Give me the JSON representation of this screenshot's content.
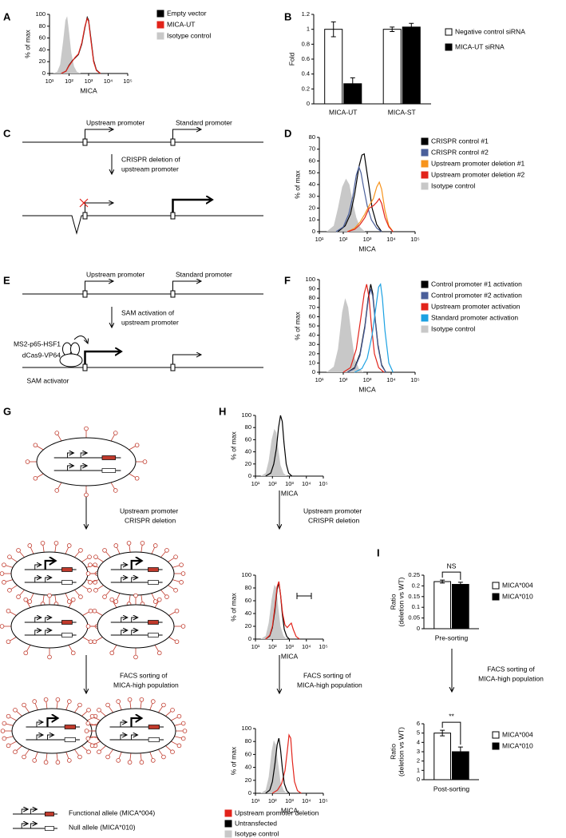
{
  "panel_labels": [
    "A",
    "B",
    "C",
    "D",
    "E",
    "F",
    "G",
    "H",
    "I"
  ],
  "diagrams": {
    "C": {
      "upstream": "Upstream promoter",
      "standard": "Standard promoter",
      "step": [
        "CRISPR deletion of",
        "upstream promoter"
      ]
    },
    "E": {
      "upstream": "Upstream promoter",
      "standard": "Standard promoter",
      "step": [
        "SAM activation of",
        "upstream promoter"
      ],
      "activator": [
        "MS2-p65-HSF1",
        "dCas9-VP64"
      ],
      "activator_name": "SAM activator"
    },
    "G": {
      "step1": [
        "Upstream promoter",
        "CRISPR deletion"
      ],
      "step2": [
        "FACS sorting of",
        "MICA-high population"
      ],
      "legend": [
        "Functional allele (MICA*004)",
        "Null allele (MICA*010)"
      ]
    },
    "H": {
      "step1": [
        "Upstream promoter",
        "CRISPR deletion"
      ],
      "step2": [
        "FACS sorting of",
        "MICA-high population"
      ]
    },
    "I": {
      "step": [
        "FACS sorting of",
        "MICA-high population"
      ]
    }
  },
  "chart_data": [
    {
      "type": "line",
      "xscale": "log",
      "ylabel": "% of max",
      "xlabel": "MICA",
      "legend": "right",
      "xlim": [
        10,
        100000
      ],
      "xticks": [
        {
          "value": 10,
          "label": "10¹"
        },
        {
          "value": 100,
          "label": "10²"
        },
        {
          "value": 1000,
          "label": "10³"
        },
        {
          "value": 10000,
          "label": "10⁴"
        },
        {
          "value": 100000,
          "label": "10⁵"
        }
      ],
      "ylim": [
        0,
        100
      ],
      "yticks": [
        0,
        20,
        40,
        60,
        80,
        100
      ],
      "series": [
        {
          "name": "Empty vector",
          "color": "#000000",
          "x": [
            40,
            70,
            100,
            150,
            200,
            300,
            450,
            650,
            850,
            1000,
            1300,
            1800,
            2500,
            4000
          ],
          "values": [
            0,
            4,
            14,
            22,
            26,
            32,
            50,
            78,
            95,
            90,
            60,
            22,
            6,
            0
          ]
        },
        {
          "name": "MICA-UT",
          "color": "#e2231a",
          "x": [
            40,
            70,
            100,
            150,
            200,
            300,
            450,
            650,
            850,
            1000,
            1300,
            1800,
            2500,
            4000
          ],
          "values": [
            0,
            4,
            13,
            21,
            27,
            33,
            52,
            80,
            93,
            88,
            57,
            20,
            5,
            0
          ]
        },
        {
          "name": "Isotype control",
          "color": "#c8c8c8",
          "fill": true,
          "x": [
            15,
            25,
            35,
            50,
            65,
            80,
            100,
            130,
            180,
            250,
            400
          ],
          "values": [
            0,
            3,
            15,
            55,
            90,
            97,
            70,
            35,
            12,
            3,
            0
          ]
        }
      ]
    },
    {
      "type": "bar",
      "ylabel": "Fold",
      "legend": "right",
      "categories": [
        "MICA-UT",
        "MICA-ST"
      ],
      "ylim": [
        0,
        1.2
      ],
      "yticks": [
        0,
        0.2,
        0.4,
        0.6,
        0.8,
        1,
        1.2
      ],
      "series": [
        {
          "name": "Negative control siRNA",
          "color": "#ffffff",
          "values": [
            1.0,
            1.0
          ],
          "errors": [
            0.1,
            0.03
          ]
        },
        {
          "name": "MICA-UT siRNA",
          "color": "#000000",
          "values": [
            0.27,
            1.03
          ],
          "errors": [
            0.08,
            0.05
          ]
        }
      ]
    },
    {
      "type": "line",
      "xscale": "log",
      "ylabel": "% of max",
      "xlabel": "MICA",
      "legend": "right",
      "xlim": [
        10,
        100000
      ],
      "xticks": [
        {
          "value": 10,
          "label": "10¹"
        },
        {
          "value": 100,
          "label": "10²"
        },
        {
          "value": 1000,
          "label": "10³"
        },
        {
          "value": 10000,
          "label": "10⁴"
        },
        {
          "value": 100000,
          "label": "10⁵"
        }
      ],
      "ylim": [
        0,
        80
      ],
      "yticks": [
        0,
        10,
        20,
        30,
        40,
        50,
        60,
        70,
        80
      ],
      "series": [
        {
          "name": "CRISPR control #1",
          "color": "#000000",
          "x": [
            60,
            120,
            200,
            300,
            450,
            600,
            750,
            900,
            1200,
            1600,
            2500,
            4000
          ],
          "values": [
            0,
            5,
            15,
            32,
            55,
            65,
            66,
            55,
            38,
            20,
            6,
            0
          ]
        },
        {
          "name": "CRISPR control #2",
          "color": "#4a5f9a",
          "x": [
            50,
            100,
            170,
            250,
            350,
            450,
            550,
            700,
            1000,
            1500,
            2500,
            4000
          ],
          "values": [
            0,
            4,
            15,
            30,
            48,
            55,
            50,
            38,
            22,
            10,
            3,
            0
          ]
        },
        {
          "name": "Upstream promoter deletion #1",
          "color": "#f7941d",
          "x": [
            150,
            300,
            500,
            800,
            1200,
            1800,
            2500,
            3200,
            4000,
            5500,
            8000,
            12000
          ],
          "values": [
            0,
            3,
            8,
            15,
            22,
            28,
            38,
            42,
            36,
            18,
            5,
            0
          ]
        },
        {
          "name": "Upstream promoter deletion #2",
          "color": "#e2231a",
          "x": [
            150,
            300,
            500,
            800,
            1200,
            1800,
            2500,
            3200,
            4000,
            5500,
            8000,
            12000
          ],
          "values": [
            0,
            2,
            6,
            12,
            20,
            22,
            25,
            28,
            24,
            12,
            4,
            0
          ]
        },
        {
          "name": "Isotype control",
          "color": "#c8c8c8",
          "fill": true,
          "x": [
            20,
            40,
            60,
            90,
            130,
            180,
            250,
            350,
            500,
            800
          ],
          "values": [
            0,
            5,
            20,
            38,
            45,
            40,
            25,
            12,
            4,
            0
          ]
        }
      ]
    },
    {
      "type": "line",
      "xscale": "log",
      "ylabel": "% of max",
      "xlabel": "MICA",
      "legend": "right",
      "xlim": [
        10,
        100000
      ],
      "xticks": [
        {
          "value": 10,
          "label": "10¹"
        },
        {
          "value": 100,
          "label": "10²"
        },
        {
          "value": 1000,
          "label": "10³"
        },
        {
          "value": 10000,
          "label": "10⁴"
        },
        {
          "value": 100000,
          "label": "10⁵"
        }
      ],
      "ylim": [
        0,
        100
      ],
      "yticks": [
        0,
        10,
        20,
        30,
        40,
        50,
        60,
        70,
        80,
        90,
        100
      ],
      "series": [
        {
          "name": "Control promoter #1 activation",
          "color": "#000000",
          "x": [
            150,
            300,
            500,
            800,
            1100,
            1400,
            1700,
            2100,
            2800,
            4000,
            6000
          ],
          "values": [
            0,
            5,
            20,
            50,
            80,
            95,
            85,
            60,
            30,
            8,
            0
          ]
        },
        {
          "name": "Control promoter #2 activation",
          "color": "#4a5f9a",
          "x": [
            150,
            300,
            500,
            800,
            1100,
            1400,
            1700,
            2100,
            2800,
            4000,
            6000
          ],
          "values": [
            0,
            4,
            18,
            48,
            78,
            90,
            82,
            58,
            28,
            7,
            0
          ]
        },
        {
          "name": "Upstream promoter activation",
          "color": "#e2231a",
          "x": [
            100,
            200,
            350,
            550,
            750,
            950,
            1200,
            1500,
            2000,
            3000,
            5000
          ],
          "values": [
            0,
            5,
            25,
            60,
            85,
            95,
            80,
            50,
            20,
            5,
            0
          ]
        },
        {
          "name": "Standard promoter activation",
          "color": "#1ba1e2",
          "x": [
            300,
            600,
            1000,
            1600,
            2300,
            3000,
            3600,
            4300,
            5500,
            8000,
            12000
          ],
          "values": [
            0,
            4,
            15,
            40,
            70,
            92,
            95,
            80,
            45,
            10,
            0
          ]
        },
        {
          "name": "Isotype control",
          "color": "#c8c8c8",
          "fill": true,
          "x": [
            20,
            40,
            60,
            90,
            120,
            160,
            220,
            300,
            450,
            700
          ],
          "values": [
            0,
            6,
            25,
            65,
            80,
            70,
            40,
            15,
            4,
            0
          ]
        }
      ]
    },
    {
      "type": "line",
      "xscale": "log",
      "ylabel": "% of max",
      "xlabel": "MICA",
      "xlim": [
        10,
        100000
      ],
      "xticks": [
        {
          "value": 10,
          "label": "10¹"
        },
        {
          "value": 100,
          "label": "10²"
        },
        {
          "value": 1000,
          "label": "10³"
        },
        {
          "value": 10000,
          "label": "10⁴"
        },
        {
          "value": 100000,
          "label": "10⁵"
        }
      ],
      "ylim": [
        0,
        100
      ],
      "yticks": [
        0,
        20,
        40,
        60,
        80,
        100
      ],
      "series": [
        {
          "color": "#c8c8c8",
          "fill": true,
          "x": [
            20,
            40,
            60,
            90,
            130,
            170,
            220,
            300,
            450,
            700
          ],
          "values": [
            0,
            5,
            25,
            60,
            78,
            72,
            45,
            18,
            5,
            0
          ]
        },
        {
          "color": "#000000",
          "x": [
            40,
            80,
            120,
            170,
            230,
            300,
            380,
            480,
            650,
            900,
            1400
          ],
          "values": [
            0,
            5,
            20,
            45,
            80,
            100,
            90,
            55,
            20,
            5,
            0
          ]
        }
      ]
    },
    {
      "type": "line",
      "xscale": "log",
      "ylabel": "% of max",
      "xlabel": "MICA",
      "xlim": [
        10,
        100000
      ],
      "xticks": [
        {
          "value": 10,
          "label": "10¹"
        },
        {
          "value": 100,
          "label": "10²"
        },
        {
          "value": 1000,
          "label": "10³"
        },
        {
          "value": 10000,
          "label": "10⁴"
        },
        {
          "value": 100000,
          "label": "10⁵"
        }
      ],
      "ylim": [
        0,
        100
      ],
      "yticks": [
        0,
        20,
        40,
        60,
        80,
        100
      ],
      "series": [
        {
          "color": "#c8c8c8",
          "fill": true,
          "x": [
            20,
            40,
            60,
            90,
            130,
            170,
            220,
            300,
            450,
            700
          ],
          "values": [
            0,
            5,
            25,
            62,
            85,
            80,
            50,
            20,
            5,
            0
          ]
        },
        {
          "color": "#000000",
          "x": [
            40,
            70,
            100,
            140,
            190,
            240,
            300,
            380,
            500,
            700,
            1000
          ],
          "values": [
            0,
            5,
            18,
            45,
            78,
            88,
            70,
            40,
            15,
            4,
            0
          ]
        },
        {
          "color": "#e2231a",
          "x": [
            40,
            70,
            100,
            140,
            190,
            240,
            300,
            400,
            550,
            750,
            1000,
            1300,
            1700,
            2500,
            4000
          ],
          "values": [
            0,
            6,
            20,
            50,
            82,
            90,
            70,
            40,
            22,
            18,
            22,
            25,
            15,
            4,
            0
          ]
        }
      ]
    },
    {
      "type": "line",
      "xscale": "log",
      "ylabel": "% of max",
      "xlabel": "MICA",
      "legend": "bottom",
      "xlim": [
        10,
        100000
      ],
      "xticks": [
        {
          "value": 10,
          "label": "10¹"
        },
        {
          "value": 100,
          "label": "10²"
        },
        {
          "value": 1000,
          "label": "10³"
        },
        {
          "value": 10000,
          "label": "10⁴"
        },
        {
          "value": 100000,
          "label": "10⁵"
        }
      ],
      "ylim": [
        0,
        100
      ],
      "yticks": [
        0,
        20,
        40,
        60,
        80,
        100
      ],
      "series": [
        {
          "name": "Upstream promoter deletion",
          "color": "#e2231a",
          "x": [
            100,
            200,
            350,
            550,
            750,
            950,
            1200,
            1500,
            2000,
            3000,
            5000
          ],
          "values": [
            0,
            5,
            15,
            35,
            65,
            90,
            85,
            50,
            18,
            4,
            0
          ]
        },
        {
          "name": "Untransfected",
          "color": "#000000",
          "x": [
            40,
            70,
            100,
            140,
            190,
            240,
            300,
            380,
            500,
            700,
            1000
          ],
          "values": [
            0,
            5,
            18,
            45,
            75,
            85,
            68,
            40,
            15,
            4,
            0
          ]
        },
        {
          "name": "Isotype control",
          "color": "#c8c8c8",
          "fill": true,
          "x": [
            20,
            40,
            60,
            90,
            120,
            160,
            220,
            300,
            450,
            700
          ],
          "values": [
            0,
            5,
            25,
            65,
            82,
            75,
            45,
            18,
            5,
            0
          ]
        }
      ]
    },
    {
      "type": "bar",
      "ylabel": [
        "Ratio",
        "(deletion vs WT)"
      ],
      "xlabel": "Pre-sorting",
      "legend": "right",
      "annotation": "NS",
      "categories": [
        null
      ],
      "ylim": [
        0,
        0.25
      ],
      "yticks": [
        0,
        0.05,
        0.1,
        0.15,
        0.2,
        0.25
      ],
      "series": [
        {
          "name": "MICA*004",
          "color": "#ffffff",
          "values": [
            0.22
          ],
          "errors": [
            0.007
          ]
        },
        {
          "name": "MICA*010",
          "color": "#000000",
          "values": [
            0.207
          ],
          "errors": [
            0.01
          ]
        }
      ]
    },
    {
      "type": "bar",
      "ylabel": [
        "Ratio",
        "(deletion vs WT)"
      ],
      "xlabel": "Post-sorting",
      "legend": "right",
      "annotation": "**",
      "categories": [
        null
      ],
      "ylim": [
        0,
        6
      ],
      "yticks": [
        0,
        1,
        2,
        3,
        4,
        5,
        6
      ],
      "series": [
        {
          "name": "MICA*004",
          "color": "#ffffff",
          "values": [
            5.0
          ],
          "errors": [
            0.3
          ]
        },
        {
          "name": "MICA*010",
          "color": "#000000",
          "values": [
            3.0
          ],
          "errors": [
            0.5
          ]
        }
      ]
    }
  ]
}
